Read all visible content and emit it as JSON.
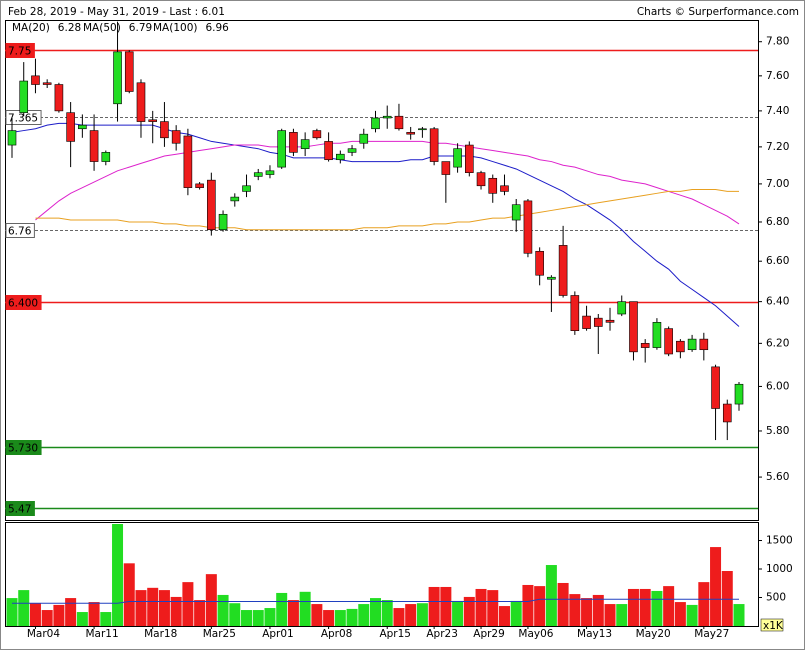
{
  "chart_data": {
    "type": "candlestick",
    "title": "Feb 28, 2019 - May 31, 2019 - Last : 6.01",
    "credit": "Charts © Surperformance.com",
    "categories": [
      null,
      null,
      "Mar04",
      null,
      null,
      null,
      null,
      "Mar11",
      null,
      null,
      null,
      null,
      "Mar18",
      null,
      null,
      null,
      null,
      "Mar25",
      null,
      null,
      null,
      null,
      "Apr01",
      null,
      null,
      null,
      null,
      "Apr08",
      null,
      null,
      null,
      null,
      "Apr15",
      null,
      null,
      null,
      "Apr23",
      null,
      null,
      null,
      "Apr29",
      null,
      null,
      null,
      "May06",
      null,
      null,
      null,
      null,
      "May13",
      null,
      null,
      null,
      null,
      "May20",
      null,
      null,
      null,
      null,
      "May27",
      null,
      null,
      null
    ],
    "open": [
      7.21,
      7.39,
      7.6,
      7.56,
      7.55,
      7.39,
      7.3,
      7.29,
      7.12,
      7.44,
      7.74,
      7.56,
      7.35,
      7.34,
      7.29,
      7.26,
      7.0,
      7.02,
      6.76,
      6.91,
      6.96,
      7.04,
      7.05,
      7.09,
      7.28,
      7.19,
      7.29,
      7.23,
      7.13,
      7.17,
      7.22,
      7.3,
      7.36,
      7.37,
      7.28,
      7.3,
      7.3,
      7.12,
      7.09,
      7.21,
      7.06,
      7.03,
      6.99,
      6.81,
      6.91,
      6.65,
      6.51,
      6.68,
      6.43,
      6.33,
      6.32,
      6.31,
      6.34,
      6.4,
      6.2,
      6.18,
      6.27,
      6.21,
      6.17,
      6.22,
      6.09,
      5.92,
      5.92
    ],
    "high": [
      7.36,
      7.68,
      7.7,
      7.58,
      7.56,
      7.45,
      7.38,
      7.38,
      7.18,
      7.92,
      7.75,
      7.58,
      7.4,
      7.45,
      7.32,
      7.3,
      7.01,
      7.06,
      6.86,
      6.95,
      7.05,
      7.08,
      7.1,
      7.3,
      7.3,
      7.28,
      7.3,
      7.28,
      7.18,
      7.21,
      7.3,
      7.4,
      7.43,
      7.44,
      7.31,
      7.31,
      7.31,
      7.12,
      7.22,
      7.23,
      7.07,
      7.05,
      7.05,
      6.92,
      6.92,
      6.67,
      6.53,
      6.78,
      6.45,
      6.38,
      6.34,
      6.37,
      6.43,
      6.4,
      6.22,
      6.32,
      6.28,
      6.22,
      6.24,
      6.25,
      6.1,
      5.94,
      6.02
    ],
    "low": [
      7.14,
      7.37,
      7.5,
      7.53,
      7.39,
      7.09,
      7.25,
      7.07,
      7.1,
      7.34,
      7.5,
      7.25,
      7.22,
      7.2,
      7.18,
      6.94,
      6.97,
      6.73,
      6.75,
      6.88,
      6.93,
      7.02,
      7.03,
      7.08,
      7.15,
      7.15,
      7.24,
      7.12,
      7.11,
      7.15,
      7.19,
      7.28,
      7.3,
      7.29,
      7.24,
      7.25,
      7.1,
      6.9,
      7.06,
      7.04,
      6.97,
      6.9,
      6.94,
      6.75,
      6.62,
      6.48,
      6.35,
      6.42,
      6.24,
      6.26,
      6.15,
      6.26,
      6.33,
      6.12,
      6.11,
      6.17,
      6.14,
      6.13,
      6.16,
      6.12,
      5.76,
      5.76,
      5.89
    ],
    "close": [
      7.29,
      7.57,
      7.55,
      7.55,
      7.4,
      7.23,
      7.32,
      7.12,
      7.17,
      7.74,
      7.51,
      7.34,
      7.34,
      7.25,
      7.22,
      6.98,
      6.98,
      6.76,
      6.84,
      6.93,
      6.99,
      7.06,
      7.07,
      7.29,
      7.17,
      7.24,
      7.25,
      7.13,
      7.16,
      7.19,
      7.27,
      7.36,
      7.37,
      7.3,
      7.27,
      7.3,
      7.12,
      7.05,
      7.19,
      7.06,
      6.99,
      6.95,
      6.96,
      6.89,
      6.64,
      6.53,
      6.52,
      6.43,
      6.26,
      6.27,
      6.28,
      6.3,
      6.4,
      6.16,
      6.18,
      6.3,
      6.15,
      6.16,
      6.22,
      6.17,
      5.9,
      5.84,
      6.01
    ],
    "up_color": "#22dd22",
    "down_color": "#ee1c1c",
    "log_scale": true,
    "ylim": [
      5.42,
      7.93
    ],
    "yticks": [
      {
        "value": 5.6,
        "label": "5.60"
      },
      {
        "value": 5.8,
        "label": "5.80"
      },
      {
        "value": 6.0,
        "label": "6.00"
      },
      {
        "value": 6.2,
        "label": "6.20"
      },
      {
        "value": 6.4,
        "label": "6.40"
      },
      {
        "value": 6.6,
        "label": "6.60"
      },
      {
        "value": 6.8,
        "label": "6.80"
      },
      {
        "value": 7.0,
        "label": "7.00"
      },
      {
        "value": 7.2,
        "label": "7.20"
      },
      {
        "value": 7.4,
        "label": "7.40"
      },
      {
        "value": 7.6,
        "label": "7.60"
      },
      {
        "value": 7.8,
        "label": "7.80"
      }
    ],
    "series": [
      {
        "name": "MA(20)",
        "color": "#1c1cc8",
        "values": [
          7.28,
          7.29,
          7.3,
          7.32,
          7.33,
          7.33,
          7.32,
          7.32,
          7.32,
          7.32,
          7.32,
          7.32,
          7.32,
          7.3,
          7.28,
          7.27,
          7.25,
          7.23,
          7.22,
          7.21,
          7.2,
          7.19,
          7.17,
          7.16,
          7.14,
          7.14,
          7.14,
          7.14,
          7.13,
          7.12,
          7.12,
          7.12,
          7.12,
          7.12,
          7.13,
          7.13,
          7.15,
          7.15,
          7.15,
          7.15,
          7.14,
          7.12,
          7.1,
          7.08,
          7.05,
          7.02,
          6.99,
          6.96,
          6.92,
          6.89,
          6.85,
          6.81,
          6.76,
          6.7,
          6.65,
          6.6,
          6.56,
          6.5,
          6.46,
          6.42,
          6.38,
          6.33,
          6.28
        ]
      },
      {
        "name": "MA(50)",
        "color": "#dd22cc",
        "values": [
          null,
          null,
          6.81,
          6.86,
          6.91,
          6.95,
          6.98,
          7.01,
          7.04,
          7.07,
          7.09,
          7.11,
          7.13,
          7.15,
          7.16,
          7.17,
          7.18,
          7.19,
          7.2,
          7.21,
          7.21,
          7.21,
          7.2,
          7.2,
          7.2,
          7.2,
          7.21,
          7.22,
          7.22,
          7.23,
          7.23,
          7.23,
          7.23,
          7.23,
          7.23,
          7.23,
          7.22,
          7.22,
          7.21,
          7.2,
          7.19,
          7.18,
          7.17,
          7.16,
          7.15,
          7.13,
          7.12,
          7.1,
          7.09,
          7.07,
          7.05,
          7.04,
          7.02,
          7.01,
          7.0,
          6.98,
          6.96,
          6.94,
          6.92,
          6.89,
          6.86,
          6.83,
          6.79
        ]
      },
      {
        "name": "MA(100)",
        "color": "#e8a020",
        "values": [
          null,
          null,
          6.82,
          6.82,
          6.82,
          6.81,
          6.81,
          6.81,
          6.81,
          6.81,
          6.8,
          6.8,
          6.8,
          6.79,
          6.79,
          6.78,
          6.78,
          6.77,
          6.77,
          6.77,
          6.76,
          6.76,
          6.76,
          6.76,
          6.76,
          6.76,
          6.76,
          6.76,
          6.76,
          6.76,
          6.77,
          6.77,
          6.77,
          6.78,
          6.78,
          6.78,
          6.79,
          6.79,
          6.8,
          6.8,
          6.81,
          6.82,
          6.82,
          6.83,
          6.84,
          6.85,
          6.86,
          6.87,
          6.88,
          6.89,
          6.9,
          6.91,
          6.92,
          6.93,
          6.94,
          6.95,
          6.96,
          6.96,
          6.97,
          6.97,
          6.97,
          6.96,
          6.96
        ]
      }
    ],
    "levels": [
      {
        "value": 7.75,
        "style": "solid",
        "color": "#ee1c1c"
      },
      {
        "value": 7.365,
        "style": "dashed",
        "color": "#666666"
      },
      {
        "value": 6.76,
        "style": "dashed",
        "color": "#666666"
      },
      {
        "value": 6.4,
        "label": "6.400",
        "style": "solid",
        "color": "#ee1c1c"
      },
      {
        "value": 5.73,
        "label": "5.730",
        "style": "solid",
        "color": "#1a8a1a"
      },
      {
        "value": 5.47,
        "style": "solid",
        "color": "#1a8a1a"
      }
    ],
    "volume": {
      "values": [
        490,
        630,
        400,
        280,
        370,
        490,
        245,
        420,
        245,
        1790,
        1100,
        630,
        670,
        630,
        510,
        770,
        455,
        910,
        545,
        400,
        280,
        280,
        315,
        580,
        455,
        600,
        385,
        280,
        280,
        300,
        385,
        490,
        455,
        315,
        385,
        400,
        685,
        685,
        440,
        510,
        650,
        630,
        350,
        440,
        720,
        700,
        1070,
        755,
        560,
        490,
        545,
        385,
        385,
        650,
        650,
        615,
        700,
        420,
        370,
        770,
        1385,
        965,
        385
      ],
      "ma_values": [
        400,
        400,
        400,
        400,
        400,
        400,
        400,
        400,
        400,
        400,
        430,
        430,
        430,
        430,
        430,
        430,
        430,
        430,
        430,
        430,
        430,
        430,
        430,
        430,
        430,
        430,
        430,
        430,
        430,
        430,
        430,
        430,
        430,
        430,
        430,
        430,
        430,
        430,
        430,
        430,
        430,
        430,
        430,
        430,
        430,
        470,
        470,
        470,
        470,
        470,
        470,
        470,
        470,
        470,
        470,
        470,
        470,
        470,
        470,
        470,
        470,
        470,
        470
      ],
      "ma_color": "#2040c0",
      "ylim": [
        0,
        1825
      ],
      "yticks": [
        500,
        1000,
        1500
      ],
      "unit_label": "x1K"
    }
  }
}
